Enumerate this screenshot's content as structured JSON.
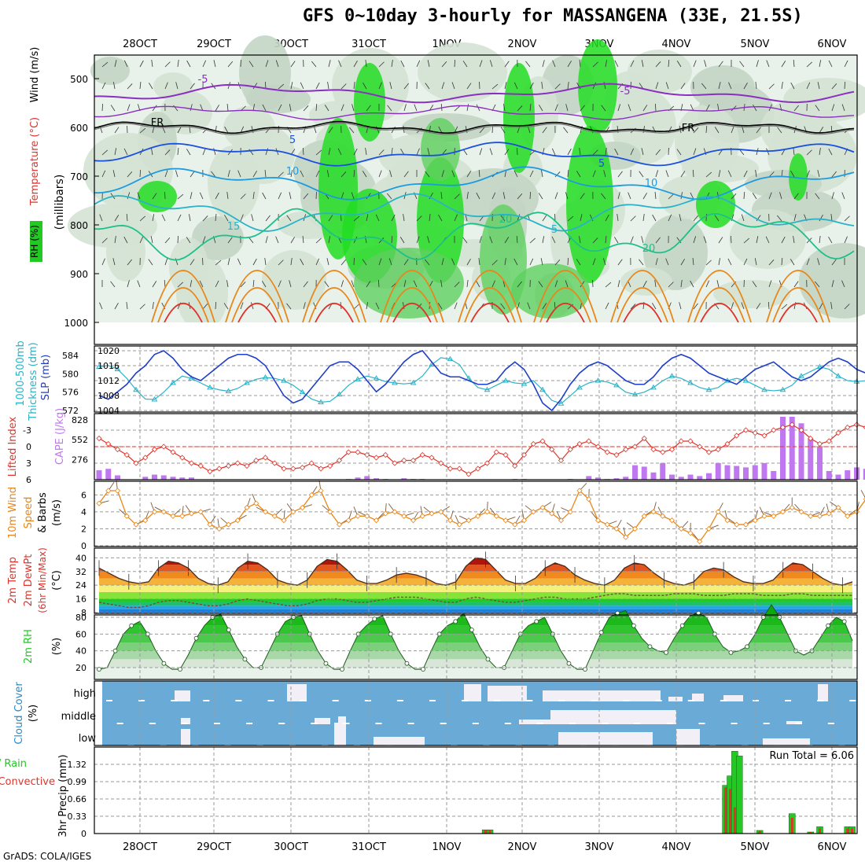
{
  "title": "GFS 0~10day 3-hourly for MASSANGENA (33E, 21.5S)",
  "footer": "GrADS: COLA/IGES",
  "colors": {
    "rh_green": "#22c922",
    "temp_red": "#e0332a",
    "wind_orange": "#e8861a",
    "slp_blue": "#1f3fc6",
    "thick_cyan": "#2ab3c8",
    "cape_purple": "#c078f0",
    "cloud_blue": "#6aaad6",
    "cloud_white": "#f3eff7",
    "precip_green": "#22c922",
    "precip_red": "#e0332a"
  },
  "chart_data": [
    {
      "type": "heatmap",
      "title": "Wind (m/s) / Temperature (°C) / RH (%)",
      "ylabel": "(millibars)",
      "ylabel_parts": [
        "Wind (m/s)",
        "Temperature (°C)",
        "RH (%)"
      ],
      "x_ticks": [
        "28OCT",
        "29OCT",
        "30OCT",
        "31OCT",
        "1NOV",
        "2NOV",
        "3NOV",
        "4NOV",
        "5NOV",
        "6NOV"
      ],
      "y_ticks": [
        500,
        600,
        700,
        800,
        900,
        1000
      ],
      "ylim": [
        1000,
        450
      ],
      "contour_labels": [
        "-5",
        "-5",
        "FR",
        "FR",
        "5",
        "5",
        "10",
        "10",
        "15",
        "20",
        "20",
        "5"
      ]
    },
    {
      "type": "line",
      "ylabel_left": "1000-500mb Thickness (dm)",
      "ylabel_right": "SLP (mb)",
      "y_ticks_thickness": [
        572,
        576,
        580,
        584
      ],
      "y_ticks_slp": [
        1004,
        1008,
        1012,
        1016,
        1020
      ],
      "series": [
        {
          "name": "SLP (mb)",
          "color": "#1f3fc6",
          "values": [
            1008,
            1007,
            1009,
            1011,
            1014,
            1016,
            1019,
            1020,
            1018,
            1015,
            1013,
            1012,
            1014,
            1016,
            1018,
            1019,
            1019,
            1018,
            1016,
            1012,
            1008,
            1006,
            1007,
            1010,
            1013,
            1016,
            1017,
            1017,
            1015,
            1012,
            1009,
            1011,
            1014,
            1017,
            1019,
            1020,
            1017,
            1014,
            1013,
            1013,
            1012,
            1011,
            1011,
            1012,
            1015,
            1017,
            1015,
            1011,
            1006,
            1004,
            1007,
            1011,
            1014,
            1016,
            1017,
            1016,
            1014,
            1012,
            1011,
            1011,
            1013,
            1016,
            1018,
            1019,
            1018,
            1016,
            1014,
            1013,
            1012,
            1011,
            1013,
            1015,
            1016,
            1017,
            1015,
            1013,
            1012,
            1013,
            1015,
            1017,
            1018,
            1017,
            1015,
            1014,
            1012,
            1011,
            1013,
            1014
          ]
        },
        {
          "name": "Thickness (dm)",
          "color": "#2ab3c8",
          "values": [
            581.5,
            581.8,
            581.0,
            579.0,
            576.5,
            574.5,
            574.4,
            576.0,
            578.0,
            579.5,
            579.0,
            578.0,
            577.0,
            576.5,
            576.2,
            576.8,
            578.0,
            578.8,
            579.2,
            579.0,
            578.5,
            577.5,
            576.0,
            574.5,
            573.8,
            574.0,
            575.5,
            577.5,
            578.8,
            579.5,
            579.0,
            578.3,
            578.0,
            577.8,
            578.0,
            579.5,
            582.0,
            583.5,
            583.2,
            582.0,
            579.0,
            577.0,
            576.5,
            577.5,
            578.5,
            578.0,
            577.8,
            578.5,
            576.5,
            574.2,
            573.5,
            575.2,
            577.0,
            578.0,
            578.5,
            578.2,
            577.5,
            576.0,
            575.5,
            576.0,
            577.0,
            578.5,
            579.5,
            579.0,
            578.0,
            577.0,
            576.5,
            577.0,
            578.5,
            579.0,
            578.5,
            577.5,
            576.5,
            576.3,
            576.5,
            577.5,
            579.5,
            580.5,
            581.5,
            581.0,
            579.5,
            578.5,
            578.3,
            578.5,
            578.8,
            579.0,
            579.2,
            579.0
          ]
        }
      ]
    },
    {
      "type": "bar",
      "ylabel_left": "Lifted Index",
      "ylabel_right": "CAPE (J/kg)",
      "y_ticks_li": [
        -3,
        0,
        3,
        6
      ],
      "y_ticks_cape": [
        276,
        552,
        828
      ],
      "series": [
        {
          "name": "CAPE (J/kg)",
          "color": "#c078f0",
          "values": [
            130,
            150,
            60,
            0,
            0,
            40,
            70,
            60,
            40,
            30,
            30,
            0,
            0,
            0,
            0,
            0,
            0,
            0,
            0,
            0,
            0,
            0,
            0,
            0,
            0,
            0,
            0,
            10,
            30,
            50,
            20,
            10,
            0,
            20,
            10,
            10,
            0,
            0,
            0,
            0,
            0,
            0,
            0,
            0,
            0,
            10,
            10,
            0,
            0,
            0,
            0,
            10,
            0,
            50,
            30,
            10,
            20,
            40,
            200,
            180,
            100,
            230,
            70,
            40,
            70,
            50,
            90,
            230,
            200,
            190,
            170,
            200,
            230,
            120,
            870,
            870,
            780,
            570,
            450,
            120,
            70,
            130,
            170,
            150,
            220,
            530,
            620,
            710,
            760,
            730,
            110,
            70,
            720
          ]
        },
        {
          "name": "Lifted Index",
          "color": "#e0332a",
          "values": [
            -1.5,
            -0.5,
            0.5,
            1.5,
            3.0,
            2.0,
            0.5,
            0,
            1.0,
            2.0,
            3.0,
            3.5,
            4.5,
            4.0,
            3.5,
            3.0,
            3.5,
            2.5,
            2.0,
            3.0,
            4.0,
            4.0,
            3.8,
            3.0,
            4.0,
            3.5,
            2.5,
            1.0,
            1.0,
            1.5,
            2.0,
            1.5,
            3.0,
            2.5,
            2.5,
            1.5,
            2.0,
            3.0,
            4.0,
            4.0,
            5.0,
            4.0,
            3.0,
            1.0,
            1.5,
            3.5,
            1.5,
            -0.5,
            -1.0,
            0.5,
            2.5,
            0.5,
            -0.5,
            -1.0,
            0,
            1.0,
            1.5,
            0.5,
            0,
            -1.5,
            0.5,
            1.0,
            0.5,
            -1.0,
            -1.0,
            0,
            1.0,
            0.5,
            -0.5,
            -2.0,
            -3.0,
            -2.5,
            -2.0,
            -3.0,
            -3.5,
            -4.0,
            -3.0,
            -1.5,
            -0.5,
            -1.0,
            -2.5,
            -3.5,
            -4.0,
            -3.5,
            -2.5,
            -1.5,
            -0.5,
            0,
            -2.5,
            -2.0,
            -3.5
          ]
        }
      ]
    },
    {
      "type": "line",
      "ylabel": "10m Wind Speed & Barbs (m/s)",
      "ylabel_parts": [
        "10m Wind",
        "Speed",
        "& Barbs",
        "(m/s)"
      ],
      "y_ticks": [
        0,
        2,
        4,
        6
      ],
      "series": [
        {
          "name": "10m Wind Speed",
          "color": "#e8861a",
          "values": [
            5.0,
            6.5,
            6.5,
            3.5,
            2.5,
            3.0,
            4.0,
            4.0,
            3.5,
            3.5,
            3.8,
            4.0,
            2.5,
            2.0,
            2.5,
            3.0,
            4.5,
            5.0,
            4.0,
            3.5,
            3.0,
            4.0,
            4.5,
            6.0,
            6.5,
            4.0,
            2.5,
            3.0,
            3.5,
            3.5,
            3.0,
            3.8,
            4.0,
            3.5,
            3.0,
            3.5,
            3.8,
            4.0,
            3.0,
            2.5,
            3.0,
            3.5,
            4.0,
            3.5,
            3.0,
            2.5,
            3.0,
            4.0,
            4.5,
            3.8,
            3.0,
            4.0,
            6.5,
            5.5,
            3.0,
            2.5,
            2.0,
            1.0,
            2.0,
            3.5,
            4.0,
            3.5,
            3.0,
            2.0,
            1.5,
            0.5,
            2.0,
            4.0,
            3.0,
            2.5,
            2.5,
            3.0,
            3.5,
            3.5,
            4.0,
            4.5,
            4.0,
            3.5,
            3.5,
            3.8,
            4.5,
            3.5,
            4.0,
            5.5,
            5.5,
            4.5,
            3.0,
            2.5,
            4.0
          ]
        }
      ]
    },
    {
      "type": "area",
      "ylabel": "2m Temp / 2m DewPt (6hr Min/Max) (°C)",
      "ylabel_parts": [
        "2m Temp",
        "2m DewPt",
        "(6hr Min/Max)",
        "(°C)"
      ],
      "y_ticks": [
        8,
        16,
        24,
        32,
        40
      ],
      "series": [
        {
          "name": "2m Temp",
          "values": [
            34,
            31,
            28,
            26,
            25,
            26,
            34,
            38,
            37,
            34,
            28,
            25,
            24,
            26,
            34,
            38,
            37,
            33,
            27,
            25,
            24,
            27,
            35,
            39,
            38,
            33,
            27,
            25,
            25,
            27,
            30,
            31,
            30,
            28,
            25,
            24,
            26,
            35,
            40,
            39,
            33,
            27,
            25,
            25,
            28,
            34,
            37,
            35,
            30,
            27,
            25,
            24,
            27,
            34,
            37,
            36,
            31,
            27,
            25,
            24,
            26,
            32,
            34,
            33,
            29,
            26,
            25,
            25,
            27,
            33,
            37,
            36,
            32,
            28,
            25,
            24,
            26
          ]
        },
        {
          "name": "2m DewPt",
          "values": [
            14,
            13,
            12,
            11,
            11,
            12,
            14,
            15,
            15,
            14,
            13,
            12,
            12,
            13,
            15,
            16,
            15,
            14,
            13,
            12,
            12,
            13,
            15,
            16,
            16,
            15,
            14,
            14,
            15,
            16,
            17,
            17,
            17,
            16,
            15,
            14,
            14,
            16,
            17,
            16,
            15,
            14,
            14,
            15,
            16,
            17,
            17,
            16,
            16,
            16,
            17,
            18,
            19,
            19,
            18,
            18,
            18,
            18,
            19,
            19,
            19,
            18,
            18,
            18,
            19,
            19,
            19,
            18,
            18,
            18,
            19,
            19,
            18,
            18,
            18,
            18,
            18
          ]
        }
      ]
    },
    {
      "type": "area",
      "ylabel": "2m RH (%)",
      "y_ticks": [
        20,
        40,
        60,
        80
      ],
      "series": [
        {
          "name": "2m RH",
          "values": [
            18,
            20,
            40,
            60,
            70,
            75,
            60,
            40,
            25,
            18,
            18,
            35,
            55,
            70,
            80,
            84,
            65,
            45,
            30,
            20,
            20,
            40,
            60,
            75,
            80,
            82,
            60,
            40,
            25,
            18,
            18,
            40,
            60,
            70,
            78,
            82,
            60,
            40,
            25,
            18,
            18,
            40,
            60,
            70,
            75,
            85,
            65,
            45,
            30,
            20,
            20,
            40,
            60,
            70,
            75,
            80,
            60,
            40,
            25,
            18,
            18,
            40,
            62,
            80,
            85,
            88,
            70,
            55,
            45,
            40,
            38,
            55,
            70,
            82,
            85,
            80,
            60,
            45,
            38,
            40,
            45,
            60,
            80,
            95,
            80,
            60,
            40,
            35,
            40,
            55,
            70,
            80,
            75,
            52
          ]
        }
      ]
    },
    {
      "type": "bar",
      "ylabel": "Cloud Cover (%)",
      "categories": [
        "high",
        "middle",
        "low"
      ],
      "note": "layers rendered as white bars on blue background per 3h step"
    },
    {
      "type": "bar",
      "ylabel": "3hr Precip (mm)",
      "legend": [
        "Total / Rain",
        "Convective"
      ],
      "annotation": "Run Total = 6.06",
      "y_ticks": [
        0,
        0.33,
        0.66,
        0.99,
        1.32
      ],
      "x_ticks": [
        "28OCT",
        "29OCT",
        "30OCT",
        "31OCT",
        "1NOV",
        "2NOV",
        "3NOV",
        "4NOV",
        "5NOV",
        "6NOV"
      ],
      "series": [
        {
          "name": "Total",
          "points": [
            [
              41.8,
              0.07
            ],
            [
              42.3,
              0.07
            ],
            [
              67.8,
              0.92
            ],
            [
              68.3,
              1.1
            ],
            [
              68.8,
              1.57
            ],
            [
              69.3,
              1.48
            ],
            [
              71.5,
              0.06
            ],
            [
              75.0,
              0.38
            ],
            [
              77.0,
              0.03
            ],
            [
              78.0,
              0.13
            ],
            [
              81.0,
              0.13
            ],
            [
              81.5,
              0.13
            ]
          ]
        },
        {
          "name": "Convective",
          "points": [
            [
              41.8,
              0.07
            ],
            [
              42.3,
              0.07
            ],
            [
              67.8,
              0.88
            ],
            [
              68.3,
              0.85
            ],
            [
              68.8,
              0.5
            ],
            [
              69.3,
              0.0
            ],
            [
              71.5,
              0.05
            ],
            [
              75.0,
              0.3
            ],
            [
              77.0,
              0.03
            ],
            [
              78.0,
              0.1
            ],
            [
              81.0,
              0.1
            ],
            [
              81.5,
              0.1
            ]
          ]
        }
      ]
    }
  ]
}
